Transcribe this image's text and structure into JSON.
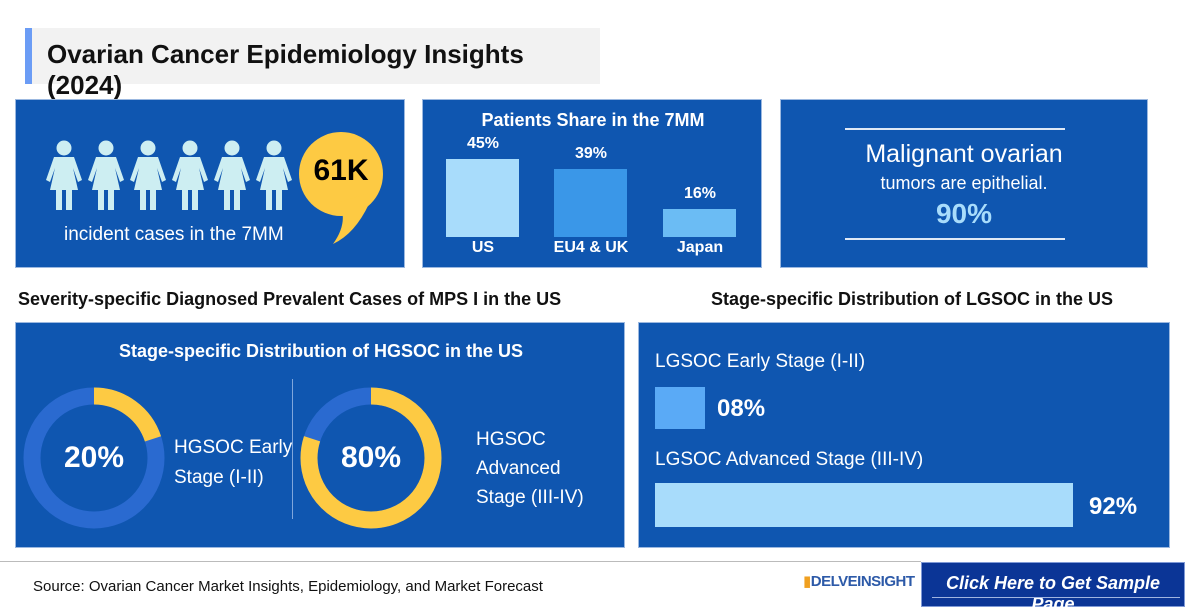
{
  "title": "Ovarian Cancer Epidemiology Insights (2024)",
  "incidence": {
    "value": "61K",
    "label": "incident cases in the 7MM",
    "figures": 6
  },
  "share": {
    "title": "Patients Share in the 7MM"
  },
  "malignant": {
    "line1": "Malignant ovarian",
    "line2": "tumors are epithelial.",
    "value": "90%"
  },
  "left_heading": "Severity-specific Diagnosed Prevalent Cases of MPS I in the US",
  "right_heading": "Stage-specific Distribution of LGSOC in the US",
  "hgsoc": {
    "title": "Stage-specific Distribution of HGSOC in the US",
    "early": {
      "value": "20%",
      "label1": "HGSOC Early",
      "label2": "Stage (I-II)"
    },
    "advanced": {
      "value": "80%",
      "label1": "HGSOC",
      "label2": "Advanced",
      "label3": "Stage (III-IV)"
    }
  },
  "lgsoc": {
    "early": {
      "label": "LGSOC Early Stage (I-II)",
      "value": "08%"
    },
    "advanced": {
      "label": "LGSOC Advanced Stage (III-IV)",
      "value": "92%"
    }
  },
  "footer": {
    "source": "Source: Ovarian Cancer Market Insights, Epidemiology, and Market Forecast",
    "logo": "DELVEINSIGHT",
    "cta": "Click Here to Get Sample Page"
  },
  "colors": {
    "panel": "#0f56b0",
    "accent": "#fdca43",
    "cta": "#0b3596"
  },
  "chart_data": [
    {
      "type": "bar",
      "title": "Patients Share in the 7MM",
      "categories": [
        "US",
        "EU4 & UK",
        "Japan"
      ],
      "values": [
        45,
        39,
        16
      ],
      "labels": [
        "45%",
        "39%",
        "16%"
      ],
      "colors": [
        "#a8dcfb",
        "#3a97e8",
        "#6bbcf4"
      ]
    },
    {
      "type": "pie",
      "title": "Stage-specific Distribution of HGSOC in the US",
      "categories": [
        "HGSOC Early Stage (I-II)",
        "HGSOC Advanced Stage (III-IV)"
      ],
      "values": [
        20,
        80
      ]
    },
    {
      "type": "bar",
      "title": "Stage-specific Distribution of LGSOC in the US",
      "categories": [
        "LGSOC Early Stage (I-II)",
        "LGSOC Advanced Stage (III-IV)"
      ],
      "values": [
        8,
        92
      ],
      "orientation": "horizontal"
    }
  ]
}
